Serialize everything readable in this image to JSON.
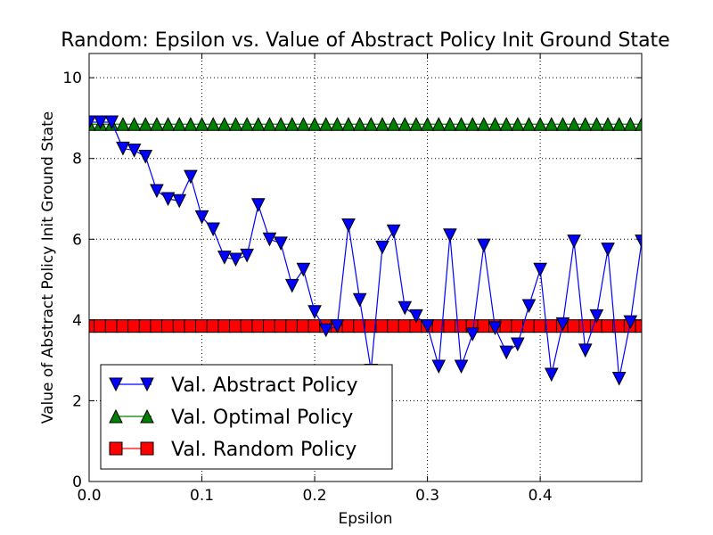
{
  "chart_data": {
    "type": "line",
    "title": "Random: Epsilon vs. Value of Abstract Policy Init Ground State",
    "xlabel": "Epsilon",
    "ylabel": "Value of Abstract Policy Init Ground State",
    "xlim": [
      0.0,
      0.49
    ],
    "ylim": [
      0,
      10.6
    ],
    "xticks": [
      "0.0",
      "0.1",
      "0.2",
      "0.3",
      "0.4"
    ],
    "yticks": [
      "0",
      "2",
      "4",
      "6",
      "8",
      "10"
    ],
    "grid": true,
    "legend_position": "lower-left",
    "x": [
      0.0,
      0.01,
      0.02,
      0.03,
      0.04,
      0.05,
      0.06,
      0.07,
      0.08,
      0.09,
      0.1,
      0.11,
      0.12,
      0.13,
      0.14,
      0.15,
      0.16,
      0.17,
      0.18,
      0.19,
      0.2,
      0.21,
      0.22,
      0.23,
      0.24,
      0.25,
      0.26,
      0.27,
      0.28,
      0.29,
      0.3,
      0.31,
      0.32,
      0.33,
      0.34,
      0.35,
      0.36,
      0.37,
      0.38,
      0.39,
      0.4,
      0.41,
      0.42,
      0.43,
      0.44,
      0.45,
      0.46,
      0.47,
      0.48,
      0.49
    ],
    "series": [
      {
        "name": "Val. Abstract Policy",
        "color": "#0000ff",
        "marker": "triangle-down",
        "values": [
          8.9,
          8.9,
          8.9,
          8.25,
          8.2,
          8.05,
          7.2,
          7.0,
          6.95,
          7.55,
          6.55,
          6.25,
          5.55,
          5.5,
          5.6,
          6.85,
          6.0,
          5.9,
          4.85,
          5.25,
          4.2,
          3.75,
          3.85,
          6.35,
          4.5,
          2.75,
          5.8,
          6.2,
          4.3,
          4.1,
          3.85,
          2.85,
          6.1,
          2.85,
          3.65,
          5.85,
          3.8,
          3.2,
          3.4,
          4.35,
          5.25,
          2.65,
          3.9,
          5.95,
          3.25,
          4.1,
          5.75,
          2.55,
          3.95,
          5.95
        ]
      },
      {
        "name": "Val. Optimal Policy",
        "color": "#008000",
        "marker": "triangle-up",
        "values": [
          8.85,
          8.85,
          8.85,
          8.85,
          8.85,
          8.85,
          8.85,
          8.85,
          8.85,
          8.85,
          8.85,
          8.85,
          8.85,
          8.85,
          8.85,
          8.85,
          8.85,
          8.85,
          8.85,
          8.85,
          8.85,
          8.85,
          8.85,
          8.85,
          8.85,
          8.85,
          8.85,
          8.85,
          8.85,
          8.85,
          8.85,
          8.85,
          8.85,
          8.85,
          8.85,
          8.85,
          8.85,
          8.85,
          8.85,
          8.85,
          8.85,
          8.85,
          8.85,
          8.85,
          8.85,
          8.85,
          8.85,
          8.85,
          8.85,
          8.85
        ]
      },
      {
        "name": "Val. Random Policy",
        "color": "#ff0000",
        "marker": "square",
        "values": [
          3.85,
          3.85,
          3.85,
          3.85,
          3.85,
          3.85,
          3.85,
          3.85,
          3.85,
          3.85,
          3.85,
          3.85,
          3.85,
          3.85,
          3.85,
          3.85,
          3.85,
          3.85,
          3.85,
          3.85,
          3.85,
          3.85,
          3.85,
          3.85,
          3.85,
          3.85,
          3.85,
          3.85,
          3.85,
          3.85,
          3.85,
          3.85,
          3.85,
          3.85,
          3.85,
          3.85,
          3.85,
          3.85,
          3.85,
          3.85,
          3.85,
          3.85,
          3.85,
          3.85,
          3.85,
          3.85,
          3.85,
          3.85,
          3.85,
          3.85
        ]
      }
    ]
  }
}
